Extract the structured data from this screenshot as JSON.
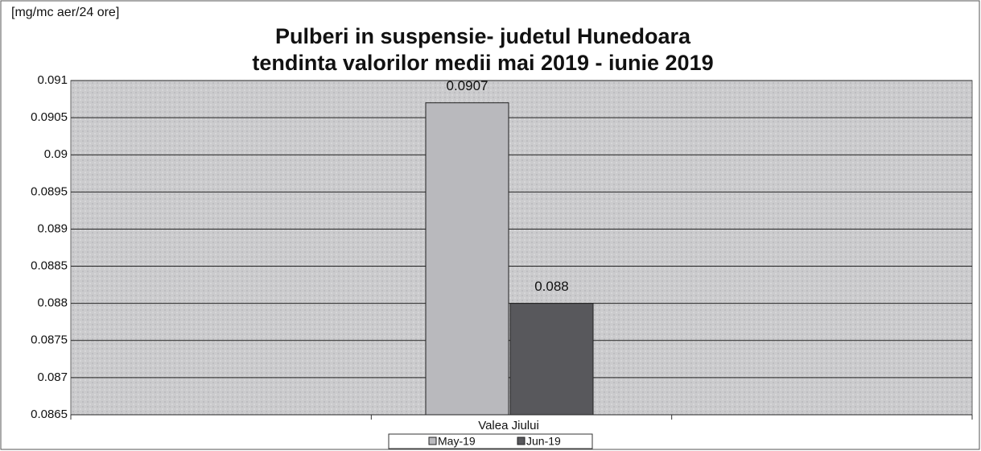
{
  "chart_data": {
    "type": "bar",
    "title": [
      "Pulberi in suspensie- judetul Hunedoara",
      "tendinta valorilor medii mai 2019 - iunie 2019"
    ],
    "y_label": "[mg/mc aer/24 ore]",
    "categories": [
      null,
      "Valea Jiului",
      null
    ],
    "series": [
      {
        "name": "May-19",
        "color": "#b9b9bd",
        "values": [
          null,
          0.0907,
          null
        ],
        "value_labels": [
          null,
          "0.0907",
          null
        ]
      },
      {
        "name": "Jun-19",
        "color": "#58585c",
        "values": [
          null,
          0.088,
          null
        ],
        "value_labels": [
          null,
          "0.088",
          null
        ]
      }
    ],
    "ylim": [
      0.0865,
      0.091
    ],
    "yticks": [
      0.0865,
      0.087,
      0.0875,
      0.088,
      0.0885,
      0.089,
      0.0895,
      0.09,
      0.0905,
      0.091
    ],
    "grid": true,
    "legend": "bottom"
  }
}
